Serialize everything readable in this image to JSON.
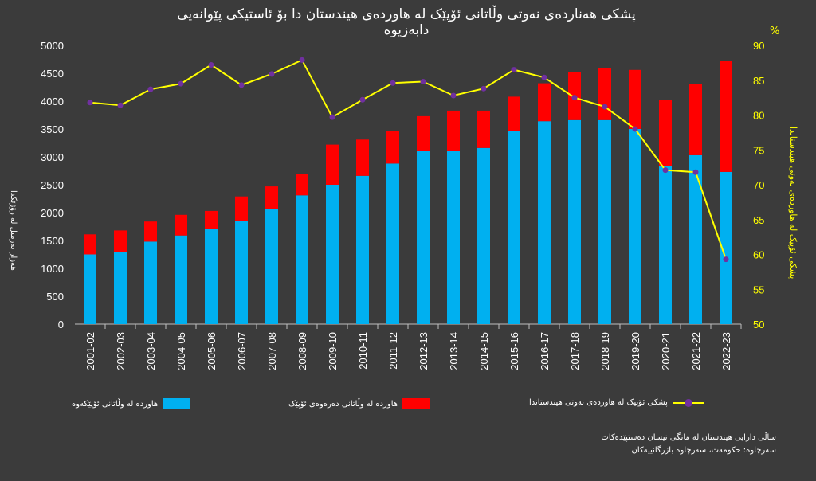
{
  "title": "پشکی هەناردەی نەوتی وڵاتانی ئۆپێک لە هاوردەی هیندستان دا  بۆ ئاستیکی پێوانەیی دابەزیوە",
  "y_left_label": "هەزار بەرمیل لە رۆژێکدا",
  "y_right_label": "پشکی ئۆپیک لە هاوردەی نەوتی هیندستاندا",
  "percent_symbol": "%",
  "legend": {
    "opec": "هاوردە لە وڵاتانی ئۆپێکەوە",
    "nonopec": "هاوردە لە وڵاتانی دەرەوەی ئۆپێک",
    "share": "پشکی ئۆپیک لە هاوردەی نەوتی هیندستاندا"
  },
  "notes": {
    "line1": "ساڵی دارایی هیندستان لە مانگی نیسان دەستپێدەکات",
    "line2": "سەرچاوە: حکومەت، سەرچاوە بازرگانییەکان"
  },
  "colors": {
    "opec": "#00b0f0",
    "nonopec": "#ff0000",
    "share": "#ffff00",
    "marker": "#7030a0",
    "axis_right": "#ffff00"
  },
  "chart_data": {
    "type": "bar",
    "stacked": true,
    "categories": [
      "2001-02",
      "2002-03",
      "2003-04",
      "2004-05",
      "2005-06",
      "2006-07",
      "2007-08",
      "2008-09",
      "2009-10",
      "2010-11",
      "2011-12",
      "2012-13",
      "2013-14",
      "2014-15",
      "2015-16",
      "2016-17",
      "2017-18",
      "2018-19",
      "2019-20",
      "2020-21",
      "2021-22",
      "2022-23"
    ],
    "series": [
      {
        "name": "هاوردە لە وڵاتانی ئۆپێکەوە",
        "values": [
          1250,
          1300,
          1480,
          1590,
          1710,
          1850,
          2060,
          2310,
          2500,
          2660,
          2880,
          3110,
          3110,
          3160,
          3470,
          3640,
          3660,
          3660,
          3500,
          2840,
          3030,
          2730
        ]
      },
      {
        "name": "هاوردە لە وڵاتانی دەرەوەی ئۆپێک",
        "values": [
          360,
          380,
          360,
          370,
          320,
          440,
          410,
          390,
          720,
          650,
          590,
          620,
          720,
          670,
          610,
          680,
          860,
          940,
          1060,
          1180,
          1280,
          1990
        ]
      }
    ],
    "line_series": {
      "name": "پشکی ئۆپیک لە هاوردەی نەوتی هیندستاندا",
      "axis": "right",
      "values": [
        81.8,
        81.4,
        83.7,
        84.5,
        87.2,
        84.3,
        85.9,
        87.9,
        79.7,
        82.2,
        84.6,
        84.8,
        82.8,
        83.8,
        86.5,
        85.4,
        82.5,
        81.2,
        78.0,
        72.1,
        71.8,
        59.3
      ]
    },
    "yticks_left": [
      0,
      500,
      1000,
      1500,
      2000,
      2500,
      3000,
      3500,
      4000,
      4500,
      5000
    ],
    "yticks_right": [
      50,
      55,
      60,
      65,
      70,
      75,
      80,
      85,
      90
    ],
    "ylim_left": [
      0,
      5000
    ],
    "ylim_right": [
      50,
      90
    ],
    "grid": false
  }
}
